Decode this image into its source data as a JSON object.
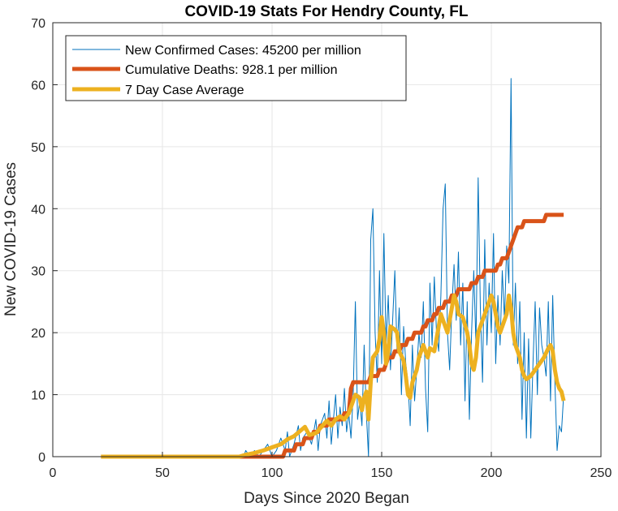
{
  "chart_data": {
    "type": "line",
    "title": "COVID-19 Stats For Hendry County, FL",
    "xlabel": "Days Since 2020 Began",
    "ylabel": "New COVID-19 Cases",
    "xlim": [
      0,
      250
    ],
    "ylim": [
      0,
      70
    ],
    "xticks": [
      "0",
      "50",
      "100",
      "150",
      "200",
      "250"
    ],
    "yticks": [
      "0",
      "10",
      "20",
      "30",
      "40",
      "50",
      "60",
      "70"
    ],
    "grid": true,
    "legend_position": "top-left",
    "series": [
      {
        "name": "New Confirmed Cases: 45200 per million",
        "color": "#0072BD",
        "width": "thin",
        "points": [
          [
            22,
            0
          ],
          [
            40,
            0
          ],
          [
            60,
            0
          ],
          [
            80,
            0
          ],
          [
            87,
            0
          ],
          [
            88,
            1
          ],
          [
            90,
            0
          ],
          [
            92,
            1
          ],
          [
            94,
            0
          ],
          [
            96,
            1
          ],
          [
            98,
            2
          ],
          [
            100,
            0
          ],
          [
            102,
            1
          ],
          [
            104,
            3
          ],
          [
            106,
            1
          ],
          [
            107,
            4
          ],
          [
            108,
            0
          ],
          [
            110,
            2
          ],
          [
            112,
            5
          ],
          [
            113,
            1
          ],
          [
            114,
            3
          ],
          [
            116,
            4
          ],
          [
            118,
            2
          ],
          [
            120,
            6
          ],
          [
            121,
            1
          ],
          [
            122,
            5
          ],
          [
            124,
            7
          ],
          [
            125,
            3
          ],
          [
            126,
            9
          ],
          [
            127,
            2
          ],
          [
            128,
            6
          ],
          [
            129,
            10
          ],
          [
            130,
            3
          ],
          [
            131,
            8
          ],
          [
            132,
            5
          ],
          [
            133,
            11
          ],
          [
            134,
            4
          ],
          [
            135,
            7
          ],
          [
            136,
            3
          ],
          [
            137,
            10
          ],
          [
            138,
            25
          ],
          [
            139,
            6
          ],
          [
            140,
            9
          ],
          [
            141,
            5
          ],
          [
            142,
            18
          ],
          [
            143,
            7
          ],
          [
            144,
            0
          ],
          [
            145,
            35
          ],
          [
            146,
            40
          ],
          [
            147,
            20
          ],
          [
            148,
            12
          ],
          [
            149,
            30
          ],
          [
            150,
            15
          ],
          [
            151,
            36
          ],
          [
            152,
            18
          ],
          [
            153,
            26
          ],
          [
            154,
            14
          ],
          [
            155,
            22
          ],
          [
            156,
            30
          ],
          [
            157,
            17
          ],
          [
            158,
            24
          ],
          [
            159,
            10
          ],
          [
            160,
            21
          ],
          [
            161,
            15
          ],
          [
            162,
            12
          ],
          [
            163,
            5
          ],
          [
            164,
            18
          ],
          [
            165,
            9
          ],
          [
            166,
            14
          ],
          [
            167,
            20
          ],
          [
            168,
            16
          ],
          [
            169,
            25
          ],
          [
            170,
            11
          ],
          [
            171,
            4
          ],
          [
            172,
            28
          ],
          [
            173,
            18
          ],
          [
            174,
            29
          ],
          [
            175,
            20
          ],
          [
            176,
            17
          ],
          [
            177,
            26
          ],
          [
            178,
            40
          ],
          [
            179,
            44
          ],
          [
            180,
            20
          ],
          [
            181,
            14
          ],
          [
            182,
            24
          ],
          [
            183,
            31
          ],
          [
            184,
            22
          ],
          [
            185,
            33
          ],
          [
            186,
            18
          ],
          [
            187,
            28
          ],
          [
            188,
            9
          ],
          [
            189,
            25
          ],
          [
            190,
            6
          ],
          [
            191,
            20
          ],
          [
            192,
            30
          ],
          [
            193,
            18
          ],
          [
            194,
            45
          ],
          [
            195,
            24
          ],
          [
            196,
            12
          ],
          [
            197,
            35
          ],
          [
            198,
            18
          ],
          [
            199,
            28
          ],
          [
            200,
            20
          ],
          [
            201,
            36
          ],
          [
            202,
            15
          ],
          [
            203,
            26
          ],
          [
            204,
            18
          ],
          [
            205,
            30
          ],
          [
            206,
            22
          ],
          [
            207,
            34
          ],
          [
            208,
            28
          ],
          [
            209,
            61
          ],
          [
            210,
            18
          ],
          [
            211,
            28
          ],
          [
            212,
            15
          ],
          [
            213,
            25
          ],
          [
            214,
            6
          ],
          [
            215,
            20
          ],
          [
            216,
            3
          ],
          [
            217,
            19
          ],
          [
            218,
            3
          ],
          [
            219,
            15
          ],
          [
            220,
            25
          ],
          [
            221,
            10
          ],
          [
            222,
            24
          ],
          [
            223,
            18
          ],
          [
            224,
            16
          ],
          [
            225,
            13
          ],
          [
            226,
            25
          ],
          [
            227,
            9
          ],
          [
            228,
            26
          ],
          [
            229,
            12
          ],
          [
            230,
            1
          ],
          [
            231,
            5
          ],
          [
            232,
            4
          ],
          [
            233,
            10
          ]
        ]
      },
      {
        "name": "Cumulative Deaths: 928.1 per million",
        "color": "#D95319",
        "width": "thick",
        "points": [
          [
            22,
            0
          ],
          [
            40,
            0
          ],
          [
            60,
            0
          ],
          [
            80,
            0
          ],
          [
            100,
            0
          ],
          [
            105,
            0
          ],
          [
            106,
            1
          ],
          [
            110,
            1
          ],
          [
            111,
            2
          ],
          [
            114,
            2
          ],
          [
            115,
            3
          ],
          [
            118,
            3
          ],
          [
            119,
            4
          ],
          [
            121,
            4
          ],
          [
            122,
            5
          ],
          [
            125,
            5
          ],
          [
            126,
            6
          ],
          [
            132,
            6
          ],
          [
            133,
            7
          ],
          [
            135,
            7
          ],
          [
            136,
            11
          ],
          [
            137,
            12
          ],
          [
            144,
            12
          ],
          [
            145,
            13
          ],
          [
            148,
            13
          ],
          [
            149,
            14
          ],
          [
            151,
            14
          ],
          [
            152,
            15
          ],
          [
            153,
            16
          ],
          [
            155,
            16
          ],
          [
            156,
            17
          ],
          [
            158,
            17
          ],
          [
            159,
            18
          ],
          [
            161,
            18
          ],
          [
            162,
            19
          ],
          [
            164,
            19
          ],
          [
            165,
            20
          ],
          [
            168,
            20
          ],
          [
            169,
            21
          ],
          [
            170,
            21
          ],
          [
            171,
            22
          ],
          [
            173,
            22
          ],
          [
            174,
            23
          ],
          [
            175,
            23
          ],
          [
            176,
            24
          ],
          [
            178,
            24
          ],
          [
            179,
            25
          ],
          [
            181,
            25
          ],
          [
            182,
            26
          ],
          [
            184,
            26
          ],
          [
            185,
            27
          ],
          [
            190,
            27
          ],
          [
            191,
            28
          ],
          [
            193,
            28
          ],
          [
            194,
            29
          ],
          [
            196,
            29
          ],
          [
            197,
            30
          ],
          [
            202,
            30
          ],
          [
            203,
            31
          ],
          [
            204,
            31
          ],
          [
            205,
            32
          ],
          [
            207,
            32
          ],
          [
            208,
            33
          ],
          [
            209,
            34
          ],
          [
            210,
            35
          ],
          [
            211,
            36
          ],
          [
            212,
            37
          ],
          [
            214,
            37
          ],
          [
            215,
            38
          ],
          [
            224,
            38
          ],
          [
            225,
            39
          ],
          [
            233,
            39
          ]
        ]
      },
      {
        "name": "7 Day Case Average",
        "color": "#EDB120",
        "width": "thick",
        "points": [
          [
            22,
            0
          ],
          [
            40,
            0
          ],
          [
            60,
            0
          ],
          [
            80,
            0
          ],
          [
            85,
            0
          ],
          [
            88,
            0.3
          ],
          [
            92,
            0.6
          ],
          [
            96,
            1
          ],
          [
            100,
            1.5
          ],
          [
            104,
            2
          ],
          [
            107,
            2.8
          ],
          [
            110,
            3.3
          ],
          [
            113,
            4.2
          ],
          [
            115,
            4.8
          ],
          [
            117,
            3.5
          ],
          [
            120,
            3.8
          ],
          [
            123,
            5
          ],
          [
            125,
            5.8
          ],
          [
            127,
            5
          ],
          [
            129,
            6
          ],
          [
            131,
            6.5
          ],
          [
            133,
            6
          ],
          [
            135,
            7
          ],
          [
            137,
            9
          ],
          [
            138,
            10
          ],
          [
            140,
            9.5
          ],
          [
            141,
            7.5
          ],
          [
            142,
            9.5
          ],
          [
            143,
            10.5
          ],
          [
            144,
            6
          ],
          [
            145,
            12
          ],
          [
            146,
            16
          ],
          [
            148,
            17
          ],
          [
            149,
            19
          ],
          [
            150,
            22.5
          ],
          [
            151,
            20
          ],
          [
            152,
            15
          ],
          [
            153,
            17
          ],
          [
            154,
            21
          ],
          [
            156,
            20.5
          ],
          [
            157,
            20
          ],
          [
            158,
            17
          ],
          [
            160,
            15.5
          ],
          [
            161,
            13
          ],
          [
            162,
            10
          ],
          [
            163,
            9.5
          ],
          [
            164,
            12
          ],
          [
            166,
            14
          ],
          [
            167,
            16
          ],
          [
            169,
            18
          ],
          [
            170,
            17
          ],
          [
            171,
            16
          ],
          [
            172,
            17.5
          ],
          [
            174,
            17
          ],
          [
            175,
            19
          ],
          [
            176,
            21
          ],
          [
            177,
            23
          ],
          [
            178,
            22
          ],
          [
            180,
            20
          ],
          [
            182,
            24
          ],
          [
            183,
            26
          ],
          [
            184,
            25
          ],
          [
            185,
            23
          ],
          [
            187,
            22.5
          ],
          [
            189,
            20
          ],
          [
            190,
            18
          ],
          [
            191,
            15
          ],
          [
            192,
            14
          ],
          [
            193,
            16
          ],
          [
            194,
            20
          ],
          [
            196,
            22
          ],
          [
            198,
            24
          ],
          [
            199,
            25
          ],
          [
            200,
            26
          ],
          [
            201,
            25
          ],
          [
            202,
            23
          ],
          [
            203,
            21
          ],
          [
            204,
            20
          ],
          [
            205,
            21
          ],
          [
            207,
            23
          ],
          [
            208,
            26
          ],
          [
            209,
            24
          ],
          [
            210,
            20
          ],
          [
            211,
            18
          ],
          [
            213,
            16
          ],
          [
            214,
            14
          ],
          [
            215,
            13
          ],
          [
            216,
            12.5
          ],
          [
            218,
            13
          ],
          [
            220,
            14
          ],
          [
            222,
            15
          ],
          [
            224,
            16
          ],
          [
            226,
            17.5
          ],
          [
            227,
            18
          ],
          [
            228,
            17
          ],
          [
            229,
            14
          ],
          [
            230,
            12
          ],
          [
            231,
            11
          ],
          [
            232,
            10.5
          ],
          [
            233,
            9
          ]
        ]
      }
    ]
  }
}
